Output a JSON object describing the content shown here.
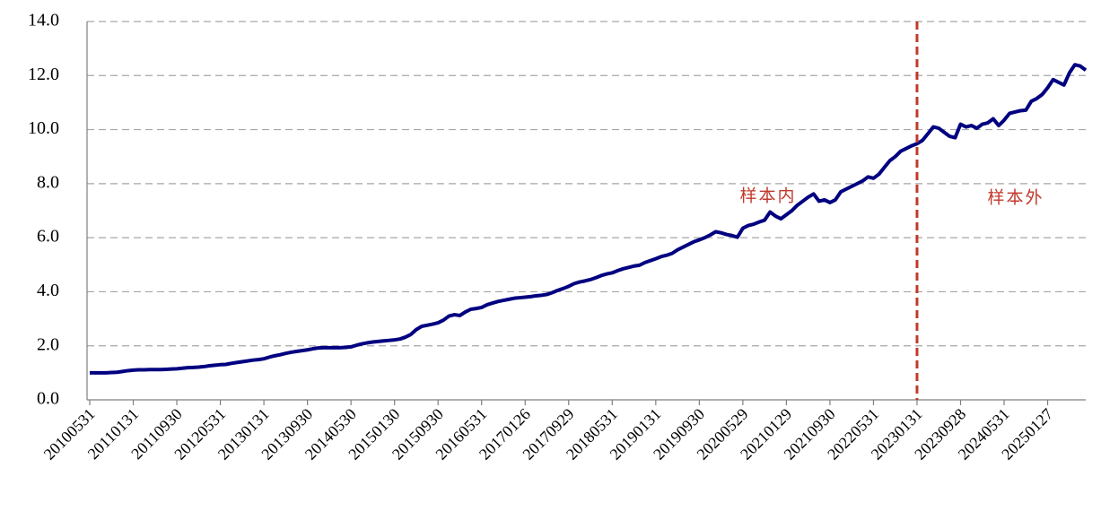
{
  "chart_data": {
    "type": "line",
    "categories": [
      "20100531",
      null,
      null,
      null,
      null,
      null,
      null,
      null,
      "20110131",
      null,
      null,
      null,
      null,
      null,
      null,
      null,
      "20110930",
      null,
      null,
      null,
      null,
      null,
      null,
      null,
      "20120531",
      null,
      null,
      null,
      null,
      null,
      null,
      null,
      "20130131",
      null,
      null,
      null,
      null,
      null,
      null,
      null,
      "20130930",
      null,
      null,
      null,
      null,
      null,
      null,
      null,
      "20140530",
      null,
      null,
      null,
      null,
      null,
      null,
      null,
      "20150130",
      null,
      null,
      null,
      null,
      null,
      null,
      null,
      "20150930",
      null,
      null,
      null,
      null,
      null,
      null,
      null,
      "20160531",
      null,
      null,
      null,
      null,
      null,
      null,
      null,
      "20170126",
      null,
      null,
      null,
      null,
      null,
      null,
      null,
      "20170929",
      null,
      null,
      null,
      null,
      null,
      null,
      null,
      "20180531",
      null,
      null,
      null,
      null,
      null,
      null,
      null,
      "20190131",
      null,
      null,
      null,
      null,
      null,
      null,
      null,
      "20190930",
      null,
      null,
      null,
      null,
      null,
      null,
      null,
      "20200529",
      null,
      null,
      null,
      null,
      null,
      null,
      null,
      "20210129",
      null,
      null,
      null,
      null,
      null,
      null,
      null,
      "20210930",
      null,
      null,
      null,
      null,
      null,
      null,
      null,
      "20220531",
      null,
      null,
      null,
      null,
      null,
      null,
      null,
      "20230131",
      null,
      null,
      null,
      null,
      null,
      null,
      null,
      "20230928",
      null,
      null,
      null,
      null,
      null,
      null,
      null,
      "20240531",
      null,
      null,
      null,
      null,
      null,
      null,
      null,
      "20250127",
      null,
      null,
      null,
      null,
      null,
      null,
      null
    ],
    "series": [
      {
        "color": "#000080",
        "values": [
          1.0,
          1.0,
          1.0,
          1.0,
          1.01,
          1.02,
          1.05,
          1.08,
          1.1,
          1.11,
          1.11,
          1.12,
          1.12,
          1.12,
          1.13,
          1.14,
          1.15,
          1.17,
          1.19,
          1.2,
          1.21,
          1.23,
          1.26,
          1.28,
          1.3,
          1.31,
          1.35,
          1.38,
          1.41,
          1.44,
          1.47,
          1.49,
          1.52,
          1.58,
          1.63,
          1.67,
          1.72,
          1.76,
          1.79,
          1.82,
          1.85,
          1.89,
          1.92,
          1.93,
          1.93,
          1.93,
          1.93,
          1.94,
          1.96,
          2.02,
          2.07,
          2.11,
          2.14,
          2.16,
          2.18,
          2.2,
          2.22,
          2.25,
          2.32,
          2.42,
          2.6,
          2.72,
          2.76,
          2.8,
          2.85,
          2.95,
          3.1,
          3.15,
          3.12,
          3.25,
          3.35,
          3.38,
          3.42,
          3.52,
          3.58,
          3.64,
          3.68,
          3.72,
          3.76,
          3.78,
          3.8,
          3.82,
          3.85,
          3.87,
          3.9,
          3.97,
          4.05,
          4.12,
          4.2,
          4.3,
          4.36,
          4.4,
          4.45,
          4.52,
          4.6,
          4.66,
          4.7,
          4.78,
          4.85,
          4.9,
          4.95,
          4.98,
          5.08,
          5.15,
          5.22,
          5.3,
          5.35,
          5.42,
          5.55,
          5.65,
          5.75,
          5.85,
          5.92,
          6.0,
          6.1,
          6.22,
          6.18,
          6.12,
          6.08,
          6.02,
          6.35,
          6.45,
          6.5,
          6.58,
          6.65,
          6.95,
          6.8,
          6.7,
          6.85,
          7.0,
          7.2,
          7.35,
          7.5,
          7.62,
          7.35,
          7.4,
          7.3,
          7.4,
          7.7,
          7.8,
          7.9,
          8.0,
          8.1,
          8.25,
          8.2,
          8.35,
          8.6,
          8.85,
          9.0,
          9.2,
          9.3,
          9.4,
          9.48,
          9.6,
          9.85,
          10.1,
          10.05,
          9.9,
          9.75,
          9.7,
          10.2,
          10.1,
          10.15,
          10.05,
          10.2,
          10.25,
          10.4,
          10.15,
          10.35,
          10.6,
          10.65,
          10.7,
          10.72,
          11.05,
          11.15,
          11.3,
          11.55,
          11.85,
          11.75,
          11.65,
          12.1,
          12.4,
          12.35,
          12.2
        ]
      }
    ],
    "ylim": [
      0,
      14
    ],
    "yticks": [
      {
        "value": 0,
        "label": "0.0"
      },
      {
        "value": 2,
        "label": "2.0"
      },
      {
        "value": 4,
        "label": "4.0"
      },
      {
        "value": 6,
        "label": "6.0"
      },
      {
        "value": 8,
        "label": "8.0"
      },
      {
        "value": 10,
        "label": "10.0"
      },
      {
        "value": 12,
        "label": "12.0"
      },
      {
        "value": 14,
        "label": "14.0"
      }
    ],
    "grid": true,
    "divider": {
      "x": "20230131",
      "color": "#c0392b"
    },
    "annotations": [
      "样本内",
      "样本外"
    ]
  }
}
